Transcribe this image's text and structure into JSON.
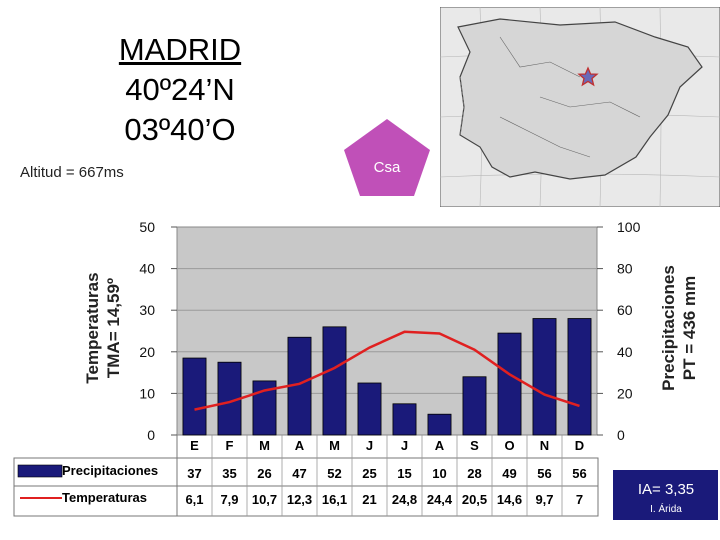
{
  "header": {
    "city": "MADRID",
    "latitude": "40º24’N",
    "longitude": "03º40’O",
    "altitude": "Altitud = 667ms",
    "climate_type": "Csa",
    "climate_badge_color": "#c050b8"
  },
  "map": {
    "marker": "star-icon"
  },
  "chart_data": {
    "type": "bar",
    "categories": [
      "E",
      "F",
      "M",
      "A",
      "M",
      "J",
      "J",
      "A",
      "S",
      "O",
      "N",
      "D"
    ],
    "series": [
      {
        "name": "Precipitaciones",
        "type": "bar",
        "axis": "right",
        "color": "#1a1a7a",
        "values": [
          37,
          35,
          26,
          47,
          52,
          25,
          15,
          10,
          28,
          49,
          56,
          56
        ],
        "labels": [
          "37",
          "35",
          "26",
          "47",
          "52",
          "25",
          "15",
          "10",
          "28",
          "49",
          "56",
          "56"
        ]
      },
      {
        "name": "Temperaturas",
        "type": "line",
        "axis": "left",
        "color": "#e02020",
        "values": [
          6.1,
          7.9,
          10.7,
          12.3,
          16.1,
          21,
          24.8,
          24.4,
          20.5,
          14.6,
          9.7,
          7
        ],
        "labels": [
          "6,1",
          "7,9",
          "10,7",
          "12,3",
          "16,1",
          "21",
          "24,8",
          "24,4",
          "20,5",
          "14,6",
          "9,7",
          "7"
        ]
      }
    ],
    "left_axis": {
      "label_line1": "Temperaturas",
      "label_line2": "TMA= 14,59º",
      "ylim": [
        0,
        50
      ],
      "ticks": [
        "0",
        "10",
        "20",
        "30",
        "40",
        "50"
      ]
    },
    "right_axis": {
      "label_line1": "Precipitaciones",
      "label_line2": "PT = 436 mm",
      "ylim": [
        0,
        100
      ],
      "ticks": [
        "0",
        "20",
        "40",
        "60",
        "80",
        "100"
      ]
    },
    "grid": true,
    "legend": "bottom-left (data table)"
  },
  "aridity": {
    "index": "IA= 3,35",
    "label": "I. Árida",
    "color": "#1a1a7a"
  }
}
